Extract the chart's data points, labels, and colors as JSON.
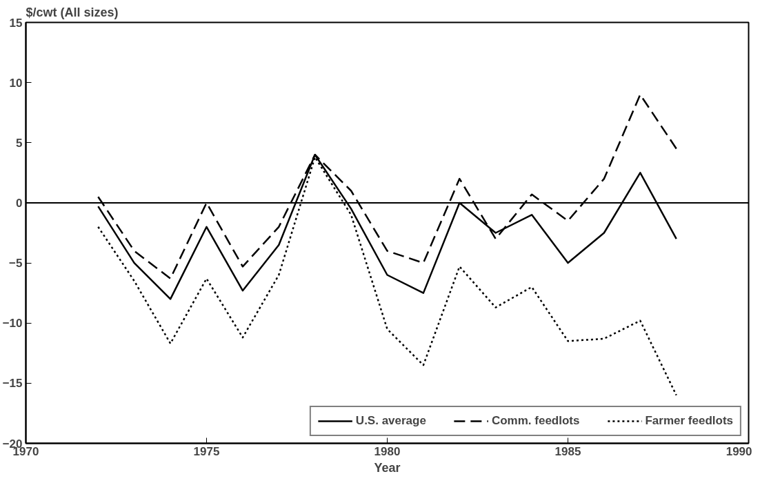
{
  "chart_data": {
    "type": "line",
    "ylabel": "$/cwt (All sizes)",
    "xlabel": "Year",
    "x": [
      1972,
      1973,
      1974,
      1975,
      1976,
      1977,
      1978,
      1979,
      1980,
      1981,
      1982,
      1983,
      1984,
      1985,
      1986,
      1987,
      1988
    ],
    "series": [
      {
        "name": "U.S. average",
        "color": "#000000",
        "line_style": "solid",
        "values": [
          -0.3,
          -5,
          -8,
          -2,
          -7.3,
          -3.5,
          4,
          -0.5,
          -6,
          -7.5,
          0,
          -2.5,
          -1,
          -5,
          -2.5,
          2.5,
          -3
        ]
      },
      {
        "name": "Comm. feedlots",
        "color": "#000000",
        "line_style": "dashed",
        "values": [
          0.5,
          -4,
          -6.3,
          0,
          -5.3,
          -2,
          4,
          1,
          -4,
          -5,
          2,
          -3,
          0.7,
          -1.5,
          2,
          9,
          4.5
        ]
      },
      {
        "name": "Farmer feedlots",
        "color": "#000000",
        "line_style": "dotted",
        "values": [
          -2,
          -6.5,
          -11.7,
          -6.3,
          -11.2,
          -6,
          3.8,
          -1,
          -10.5,
          -13.5,
          -5.3,
          -8.7,
          -7,
          -11.5,
          -11.3,
          -9.8,
          -16
        ]
      }
    ],
    "xlim": [
      1970,
      1990
    ],
    "xticks": [
      1970,
      1975,
      1980,
      1985,
      1990
    ],
    "ylim": [
      -20,
      15
    ],
    "yticks": [
      -20,
      -15,
      -10,
      -5,
      0,
      5,
      10,
      15
    ],
    "ref_lines": [
      {
        "axis": "y",
        "value": 0,
        "color": "#000000",
        "line_style": "solid"
      }
    ],
    "grid": false,
    "legend": "bottom right"
  }
}
